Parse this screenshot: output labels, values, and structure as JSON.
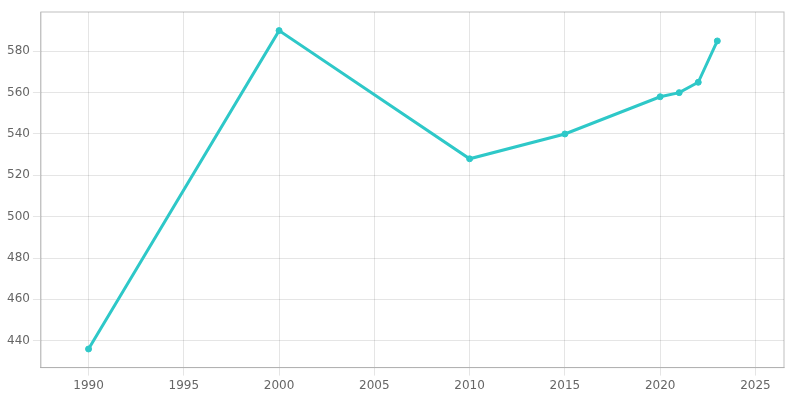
{
  "chart_data": {
    "type": "line",
    "x": [
      1990,
      2000,
      2010,
      2015,
      2020,
      2021,
      2022,
      2023
    ],
    "values": [
      436,
      590,
      528,
      540,
      558,
      560,
      565,
      585
    ],
    "color": "#2ec8c8",
    "marker": "circle",
    "xlim": [
      1987.5,
      2026.5
    ],
    "ylim": [
      427,
      599
    ],
    "xticks": [
      1990,
      1995,
      2000,
      2005,
      2010,
      2015,
      2020,
      2025
    ],
    "yticks": [
      440,
      460,
      480,
      500,
      520,
      540,
      560,
      580
    ],
    "grid": true
  }
}
